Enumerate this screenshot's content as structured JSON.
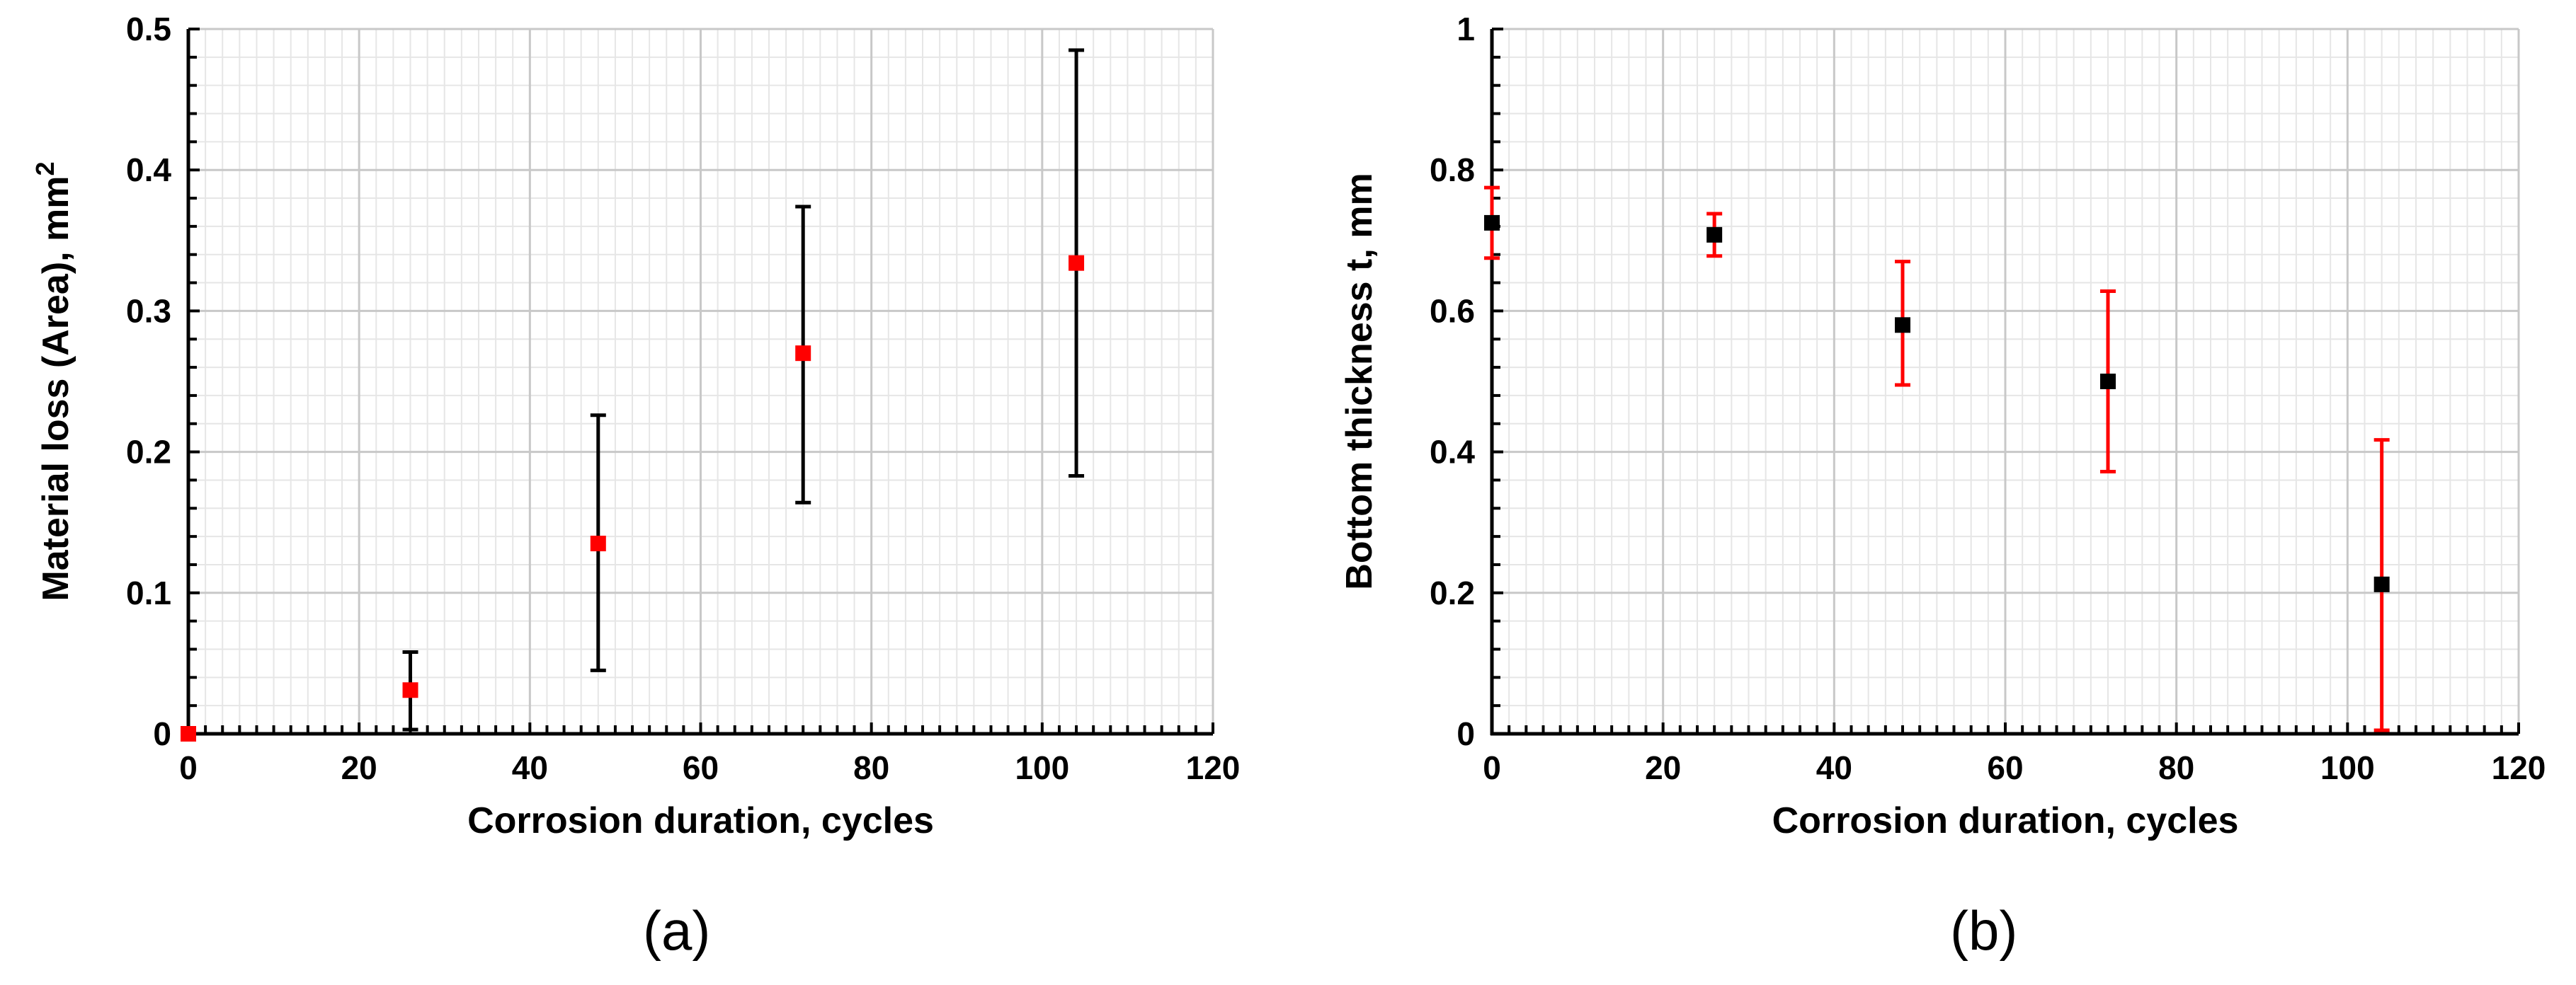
{
  "chart_data": [
    {
      "type": "scatter",
      "panel_label": "(a)",
      "xlabel": "Corrosion duration, cycles",
      "ylabel": "Material loss (Area), mm",
      "ylabel_sup": "2",
      "xlim": [
        0,
        120
      ],
      "ylim": [
        0,
        0.5
      ],
      "xticks": [
        "0",
        "20",
        "40",
        "60",
        "80",
        "100",
        "120"
      ],
      "yticks": [
        "0",
        "0.1",
        "0.2",
        "0.3",
        "0.4",
        "0.5"
      ],
      "grid": true,
      "marker_color": "#ff0000",
      "errorbar_color": "#000000",
      "points": [
        {
          "x": 0,
          "y": 0,
          "err_low": 0,
          "err_high": 0
        },
        {
          "x": 26,
          "y": 0.031,
          "err_low": 0.003,
          "err_high": 0.058
        },
        {
          "x": 48,
          "y": 0.135,
          "err_low": 0.045,
          "err_high": 0.226
        },
        {
          "x": 72,
          "y": 0.27,
          "err_low": 0.164,
          "err_high": 0.374
        },
        {
          "x": 104,
          "y": 0.334,
          "err_low": 0.183,
          "err_high": 0.485
        }
      ]
    },
    {
      "type": "scatter",
      "panel_label": "(b)",
      "xlabel": "Corrosion duration, cycles",
      "ylabel": "Bottom thickness t, mm",
      "ylabel_sup": "",
      "xlim": [
        0,
        120
      ],
      "ylim": [
        0,
        1
      ],
      "xticks": [
        "0",
        "20",
        "40",
        "60",
        "80",
        "100",
        "120"
      ],
      "yticks": [
        "0",
        "0.2",
        "0.4",
        "0.6",
        "0.8",
        "1"
      ],
      "grid": true,
      "marker_color": "#000000",
      "errorbar_color": "#ff0000",
      "points": [
        {
          "x": 0,
          "y": 0.725,
          "err_low": 0.675,
          "err_high": 0.775
        },
        {
          "x": 26,
          "y": 0.708,
          "err_low": 0.678,
          "err_high": 0.738
        },
        {
          "x": 48,
          "y": 0.58,
          "err_low": 0.495,
          "err_high": 0.67
        },
        {
          "x": 72,
          "y": 0.5,
          "err_low": 0.372,
          "err_high": 0.628
        },
        {
          "x": 104,
          "y": 0.212,
          "err_low": 0.005,
          "err_high": 0.417
        }
      ]
    }
  ]
}
